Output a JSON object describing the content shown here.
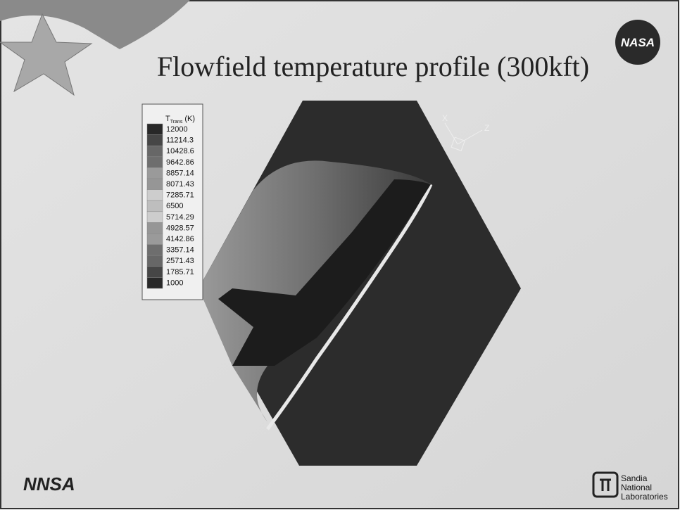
{
  "slide": {
    "title": "Flowfield temperature profile (300kft)",
    "legend": {
      "title": "T",
      "title_sub": "Trans",
      "title_unit": "(K)",
      "levels": [
        "12000",
        "11214.3",
        "10428.6",
        "9642.86",
        "8857.14",
        "8071.43",
        "7285.71",
        "6500",
        "5714.29",
        "4928.57",
        "4142.86",
        "3357.14",
        "2571.43",
        "1785.71",
        "1000"
      ]
    },
    "axes": {
      "x": "X",
      "z": "Z"
    },
    "logos": {
      "nasa": "NASA",
      "nnsa": "NNSA",
      "sandia": [
        "Sandia",
        "National",
        "Laboratories"
      ]
    }
  }
}
